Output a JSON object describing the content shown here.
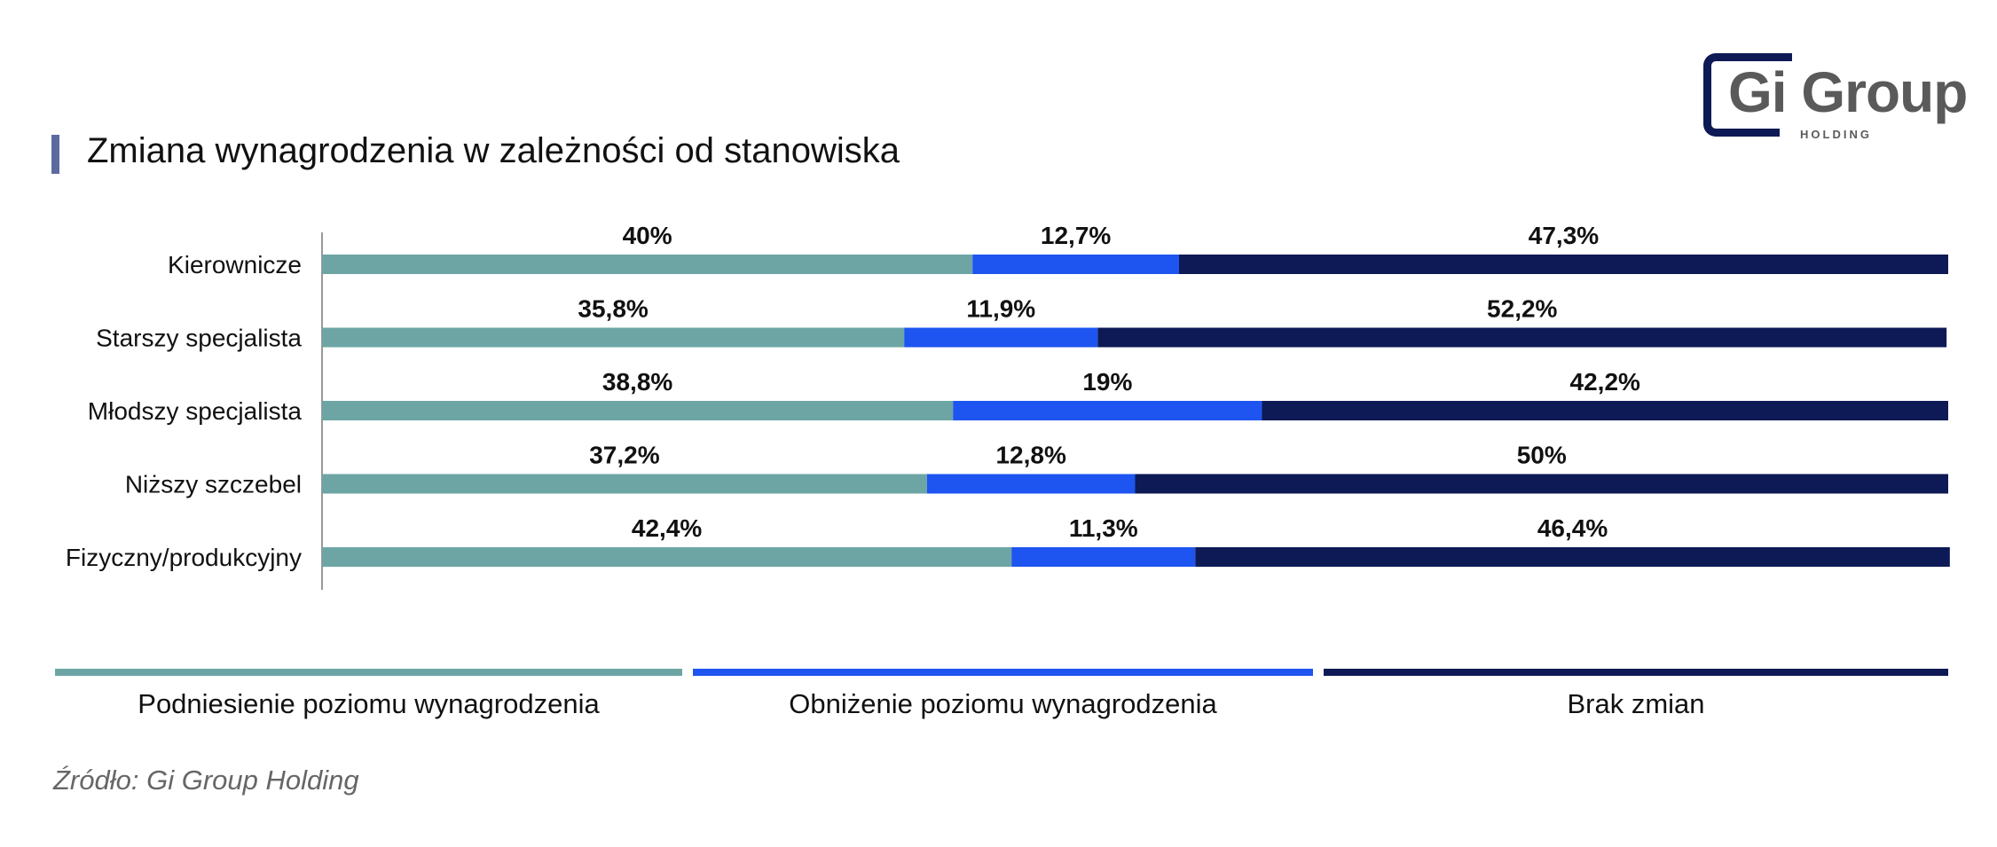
{
  "title": "Zmiana wynagrodzenia w zależności od stanowiska",
  "logo": {
    "name": "Gi Group",
    "sub": "HOLDING"
  },
  "source": "Źródło: Gi Group Holding",
  "colors": {
    "raise": "#6da5a5",
    "cut": "#1e55f0",
    "none": "#0d1a55",
    "axis": "#999999",
    "title_accent": "#5c6aa0"
  },
  "chart_data": {
    "type": "bar",
    "orientation": "horizontal",
    "stacked": true,
    "categories": [
      "Kierownicze",
      "Starszy specjalista",
      "Młodszy specjalista",
      "Niższy szczebel",
      "Fizyczny/produkcyjny"
    ],
    "series": [
      {
        "name": "Podniesienie poziomu wynagrodzenia",
        "values": [
          40,
          35.8,
          38.8,
          37.2,
          42.4
        ],
        "labels": [
          "40%",
          "35,8%",
          "38,8%",
          "37,2%",
          "42,4%"
        ],
        "color": "#6da5a5"
      },
      {
        "name": "Obniżenie poziomu wynagrodzenia",
        "values": [
          12.7,
          11.9,
          19,
          12.8,
          11.3
        ],
        "labels": [
          "12,7%",
          "11,9%",
          "19%",
          "12,8%",
          "11,3%"
        ],
        "color": "#1e55f0"
      },
      {
        "name": "Brak zmian",
        "values": [
          47.3,
          52.2,
          42.2,
          50,
          46.4
        ],
        "labels": [
          "47,3%",
          "52,2%",
          "42,2%",
          "50%",
          "46,4%"
        ],
        "color": "#0d1a55"
      }
    ],
    "xlim": [
      0,
      100
    ],
    "legend": "bottom"
  }
}
